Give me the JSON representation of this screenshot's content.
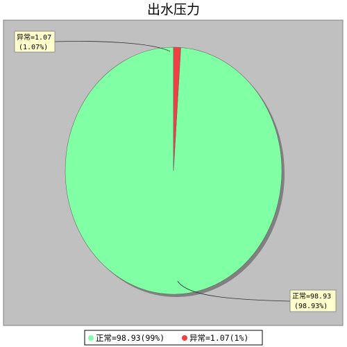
{
  "chart_data": {
    "type": "pie",
    "title": "出水压力",
    "slices": [
      {
        "name": "正常",
        "value": 98.93,
        "percent_label": "98.93%",
        "callout_name_value": "正常=98.93",
        "callout_percent": "(98.93%)",
        "legend_label": "正常=98.93(99%)",
        "color": "#80ffa4"
      },
      {
        "name": "异常",
        "value": 1.07,
        "percent_label": "1.07%",
        "callout_name_value": "异常=1.07",
        "callout_percent": "(1.07%)",
        "legend_label": "异常=1.07(1%)",
        "color": "#f04040"
      }
    ],
    "legend_position": "bottom",
    "background_color": "#c0c0c0",
    "label_box_color": "#ffffcc"
  }
}
